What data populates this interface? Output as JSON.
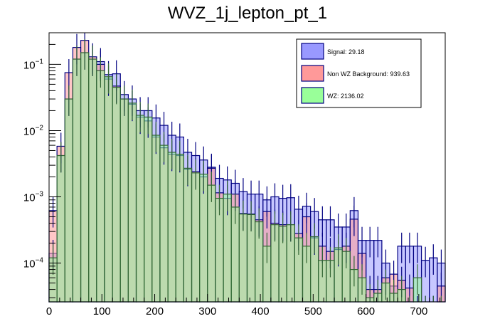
{
  "chart_data": {
    "type": "bar",
    "title": "WVZ_1j_lepton_pt_1",
    "xlabel": "",
    "ylabel": "",
    "xlim": [
      0,
      750
    ],
    "ylim": [
      2.6e-05,
      0.3
    ],
    "yscale": "log",
    "bin_width": 15,
    "x_ticks": [
      "0",
      "100",
      "200",
      "300",
      "400",
      "500",
      "600",
      "700"
    ],
    "x_tick_values": [
      0,
      100,
      200,
      300,
      400,
      500,
      600,
      700
    ],
    "y_ticks": [
      {
        "base": "10",
        "exp": "−1",
        "value": 0.1
      },
      {
        "base": "10",
        "exp": "−2",
        "value": 0.01
      },
      {
        "base": "10",
        "exp": "−3",
        "value": 0.001
      },
      {
        "base": "10",
        "exp": "−4",
        "value": 0.0001
      }
    ],
    "legend_position": "top-right",
    "series": [
      {
        "name": "WZ",
        "legend": "WZ: 2136.02",
        "color": "#99ff99",
        "values": [
          0.00012,
          0.0042,
          0.03,
          0.12,
          0.15,
          0.12,
          0.08,
          0.065,
          0.045,
          0.03,
          0.026,
          0.017,
          0.016,
          0.0085,
          0.006,
          0.0047,
          0.0044,
          0.0027,
          0.0023,
          0.0022,
          0.0015,
          0.00095,
          0.0011,
          0.0007,
          0.00055,
          0.00054,
          0.00042,
          0.00018,
          0.00038,
          0.00036,
          0.00038,
          0.00024,
          0.00018,
          0.00025,
          0.00011,
          0.00011,
          0.00017,
          0.00015,
          8e-05,
          6e-05,
          3e-05,
          3.5e-05,
          5e-05,
          3.5e-05,
          4e-05,
          2e-05,
          6e-05,
          2e-05,
          2e-05,
          2e-05
        ]
      },
      {
        "name": "Non WZ Background",
        "legend": "Non WZ Background: 939.63",
        "color": "#ff9999",
        "values": [
          0.00062,
          0.0058,
          0.075,
          0.18,
          0.23,
          0.13,
          0.1,
          0.06,
          0.047,
          0.03,
          0.025,
          0.016,
          0.014,
          0.008,
          0.0055,
          0.0044,
          0.0042,
          0.0026,
          0.0024,
          0.002,
          0.0027,
          0.00115,
          0.00095,
          0.0011,
          0.00056,
          0.00055,
          0.00045,
          0.0006,
          0.0004,
          0.00038,
          0.00038,
          0.00028,
          0.0005,
          0.00024,
          0.00018,
          0.00015,
          0.00016,
          0.00018,
          0.00046,
          0.00014,
          4e-05,
          4e-05,
          6e-05,
          6.8e-05,
          5.5e-05,
          4.2e-05,
          2e-05,
          2e-05,
          2e-05,
          4.5e-05
        ]
      },
      {
        "name": "Signal",
        "legend": "Signal: 29.18",
        "color": "#9999ff",
        "values": [
          0.00014,
          0.0042,
          0.03,
          0.12,
          0.15,
          0.12,
          0.11,
          0.07,
          0.072,
          0.035,
          0.03,
          0.02,
          0.02,
          0.0155,
          0.012,
          0.0085,
          0.008,
          0.0047,
          0.0042,
          0.0036,
          0.0028,
          0.0019,
          0.0018,
          0.0016,
          0.0012,
          0.0011,
          0.0011,
          0.0009,
          0.001,
          0.00095,
          0.00097,
          0.00065,
          0.00072,
          0.0006,
          0.00045,
          0.00045,
          0.00035,
          0.00035,
          0.00062,
          0.00022,
          0.00022,
          0.00022,
          0.0001,
          4.5e-05,
          0.00018,
          0.00018,
          0.00018,
          0.00011,
          0.00012,
          0.0001
        ]
      }
    ]
  }
}
